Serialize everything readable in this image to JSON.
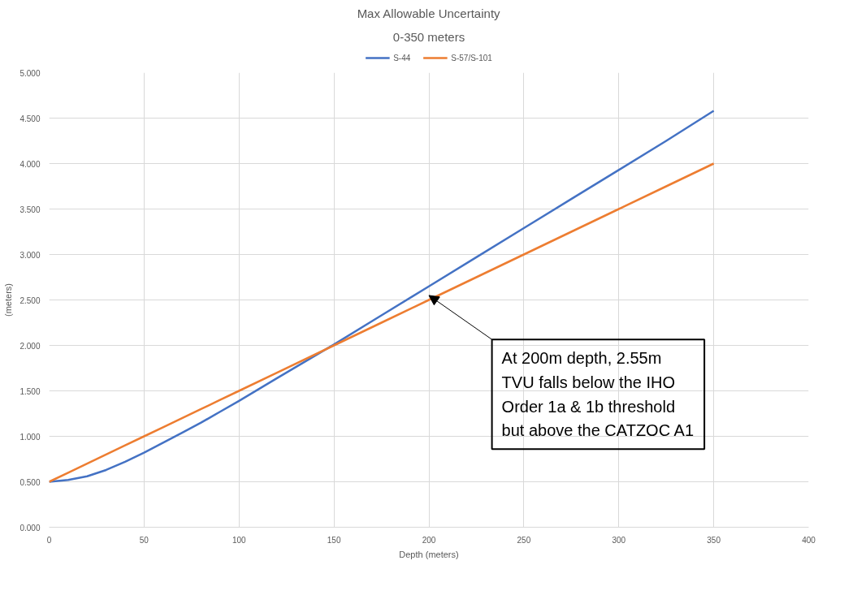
{
  "chart_data": {
    "type": "line",
    "title": "Max Allowable Uncertainty",
    "subtitle": "0-350 meters",
    "xlabel": "Depth (meters)",
    "ylabel": "(meters)",
    "x": [
      0,
      10,
      20,
      30,
      40,
      50,
      60,
      70,
      80,
      90,
      100,
      120,
      150,
      175,
      200,
      225,
      250,
      275,
      300,
      325,
      350
    ],
    "series": [
      {
        "name": "S-44",
        "color": "#4472c4",
        "values": [
          0.5,
          0.52,
          0.56,
          0.63,
          0.72,
          0.82,
          0.93,
          1.04,
          1.15,
          1.27,
          1.39,
          1.64,
          2.01,
          2.33,
          2.65,
          2.97,
          3.29,
          3.61,
          3.93,
          4.25,
          4.58
        ]
      },
      {
        "name": "S-57/S-101",
        "color": "#ed7d31",
        "values": [
          0.5,
          0.6,
          0.7,
          0.8,
          0.9,
          1.0,
          1.1,
          1.2,
          1.3,
          1.4,
          1.5,
          1.7,
          2.0,
          2.25,
          2.5,
          2.75,
          3.0,
          3.25,
          3.5,
          3.75,
          4.0
        ]
      }
    ],
    "xlim": [
      0,
      400
    ],
    "xticks": [
      0,
      50,
      100,
      150,
      200,
      250,
      300,
      350,
      400
    ],
    "ylim": [
      0,
      5
    ],
    "yticks": [
      {
        "value": 0,
        "label": "0.000"
      },
      {
        "value": 0.5,
        "label": "0.500"
      },
      {
        "value": 1,
        "label": "1.000"
      },
      {
        "value": 1.5,
        "label": "1.500"
      },
      {
        "value": 2,
        "label": "2.000"
      },
      {
        "value": 2.5,
        "label": "2.500"
      },
      {
        "value": 3,
        "label": "3.000"
      },
      {
        "value": 3.5,
        "label": "3.500"
      },
      {
        "value": 4,
        "label": "4.000"
      },
      {
        "value": 4.5,
        "label": "4.500"
      },
      {
        "value": 5,
        "label": "5.000"
      }
    ],
    "annotations": [
      {
        "text": "At 200m depth, 2.55m\nTVU falls below the IHO\nOrder 1a & 1b threshold\nbut above the CATZOC A1",
        "x": 200,
        "y": 2.55
      }
    ],
    "grid": true,
    "legend": "top",
    "marker": "none",
    "line_style": "solid"
  }
}
